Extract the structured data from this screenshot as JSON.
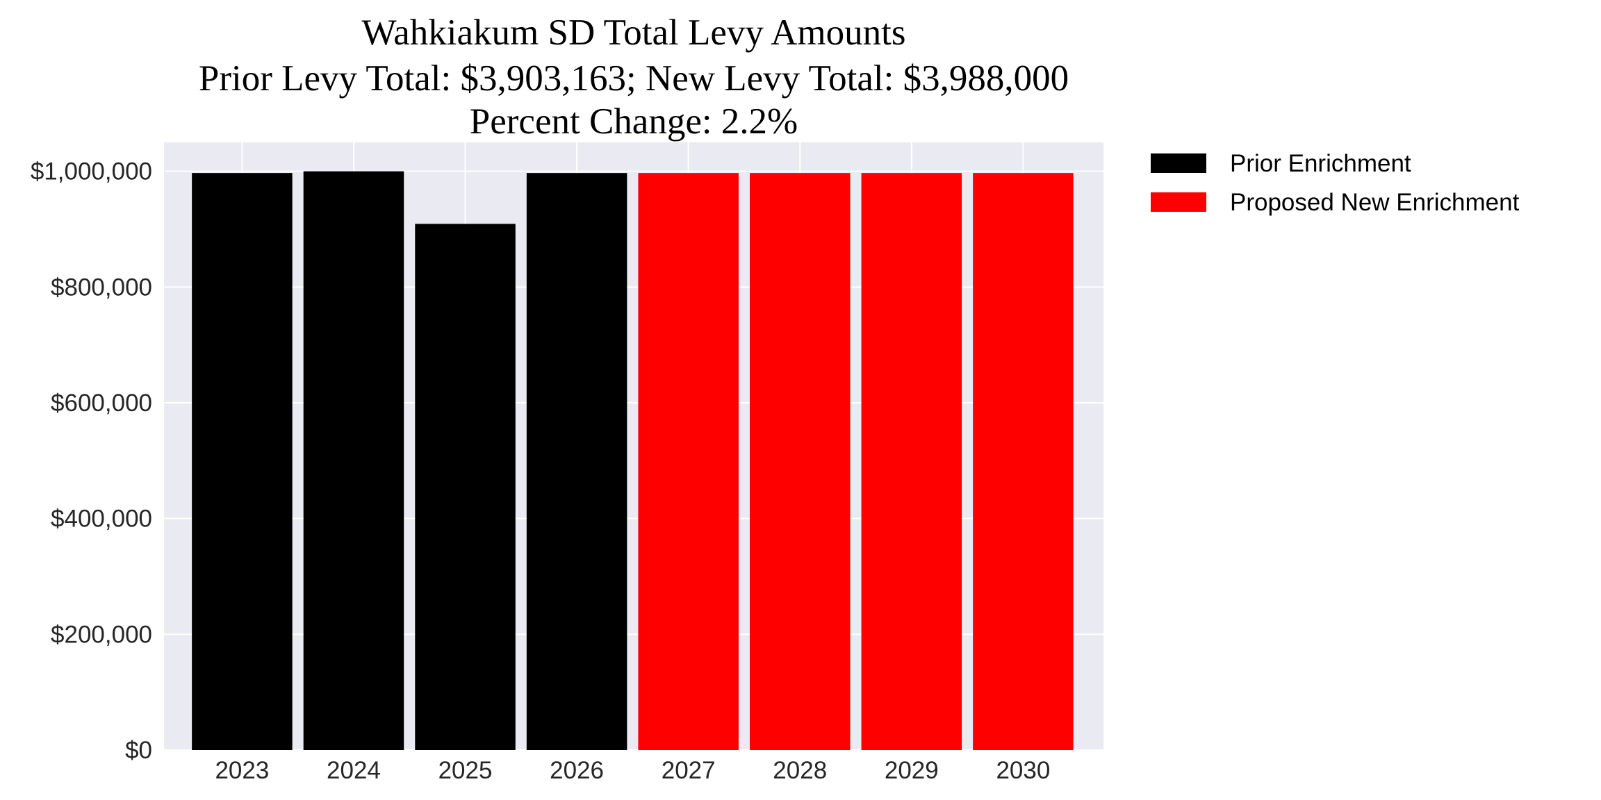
{
  "chart_data": {
    "type": "bar",
    "title": "Wahkiakum SD Total Levy Amounts",
    "subtitle_lines": [
      "Prior Levy Total:  $3,903,163; New Levy Total: $3,988,000",
      "Percent Change: 2.2%"
    ],
    "xlabel": "",
    "ylabel": "",
    "categories": [
      "2023",
      "2024",
      "2025",
      "2026",
      "2027",
      "2028",
      "2029",
      "2030"
    ],
    "series": [
      {
        "name": "Prior Enrichment",
        "color": "#000000",
        "values": [
          997000,
          1000000,
          909163,
          997000,
          null,
          null,
          null,
          null
        ]
      },
      {
        "name": "Proposed New Enrichment",
        "color": "#FF0000",
        "values": [
          null,
          null,
          null,
          null,
          997000,
          997000,
          997000,
          997000
        ]
      }
    ],
    "ylim": [
      0,
      1050000
    ],
    "yticks": [
      0,
      200000,
      400000,
      600000,
      800000,
      1000000
    ],
    "ytick_labels": [
      "$0",
      "$200,000",
      "$400,000",
      "$600,000",
      "$800,000",
      "$1,000,000"
    ],
    "grid": true,
    "background": "#EAEAF2",
    "legend_placement": "outside-top-right"
  }
}
